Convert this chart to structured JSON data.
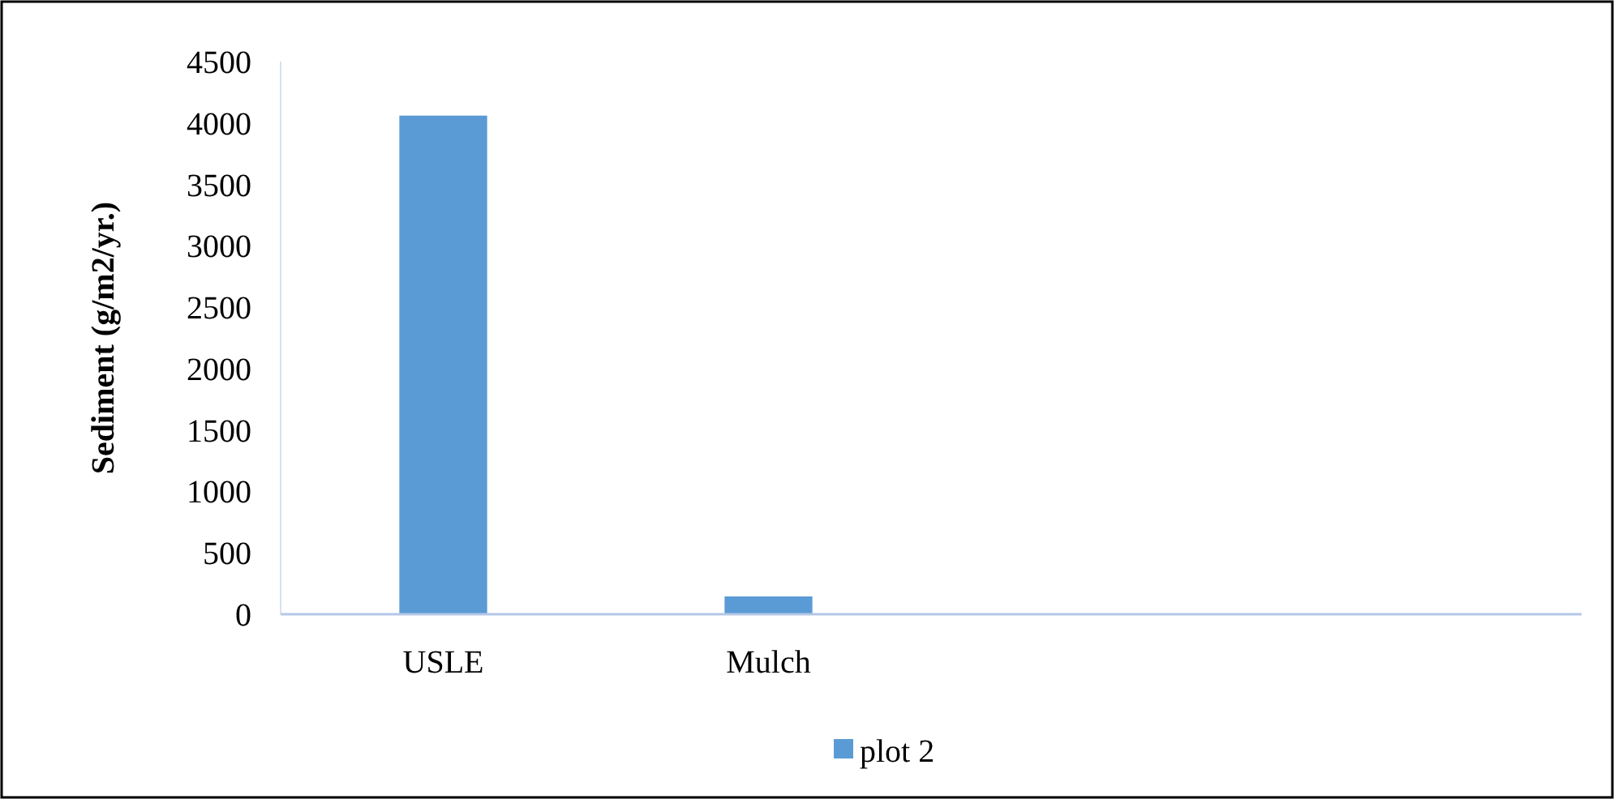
{
  "chart_data": {
    "type": "bar",
    "ylabel": "Sediment (g/m2/yr.)",
    "categories": [
      "USLE",
      "Mulch",
      null,
      null
    ],
    "series": [
      {
        "name": "plot 2",
        "color": "#5b9bd5",
        "values": [
          4060,
          145,
          null,
          null
        ]
      }
    ],
    "ylim": [
      0,
      4500
    ],
    "yticks": [
      0,
      500,
      1000,
      1500,
      2000,
      2500,
      3000,
      3500,
      4000,
      4500
    ],
    "grid": false,
    "legend": "bottom"
  }
}
